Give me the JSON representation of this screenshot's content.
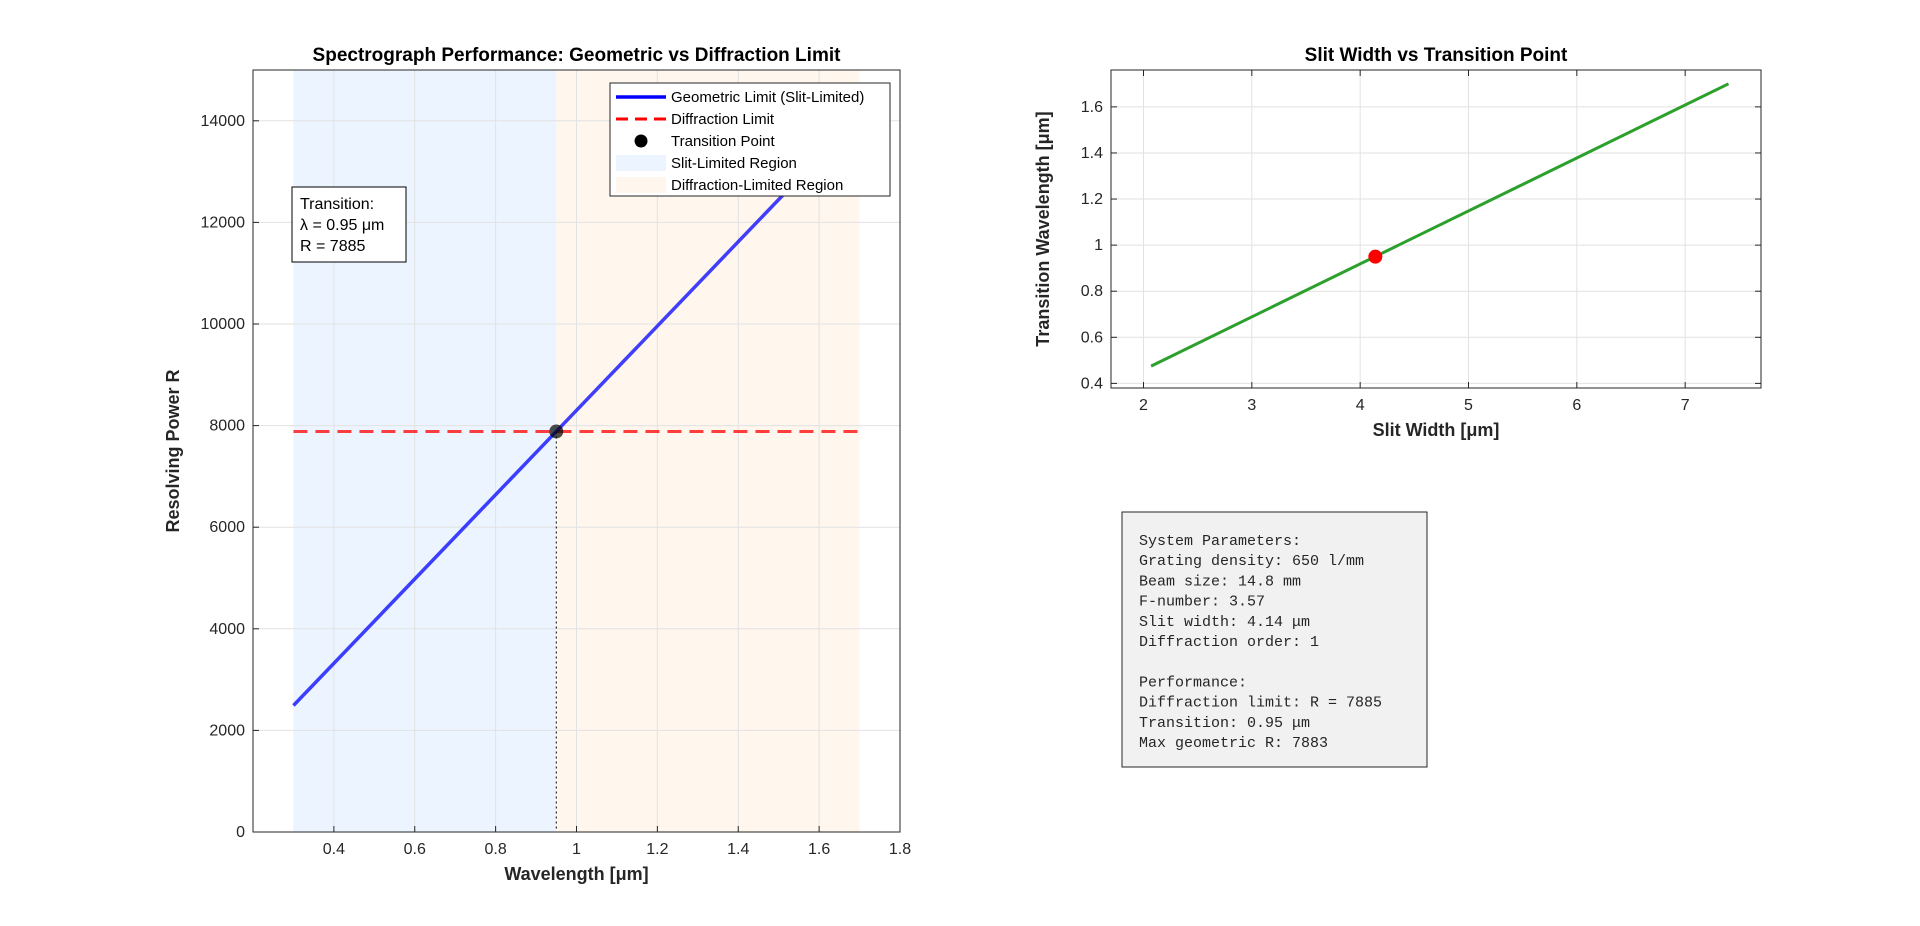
{
  "chart_data": [
    {
      "type": "line",
      "title": "Spectrograph Performance: Geometric vs Diffraction Limit",
      "xlabel": "Wavelength [μm]",
      "ylabel": "Resolving Power R",
      "xlim": [
        0.2,
        1.8
      ],
      "ylim": [
        0,
        15000
      ],
      "xticks": [
        0.4,
        0.6,
        0.8,
        1,
        1.2,
        1.4,
        1.6,
        1.8
      ],
      "yticks": [
        0,
        2000,
        4000,
        6000,
        8000,
        10000,
        12000,
        14000
      ],
      "grid": true,
      "legend_position": "top-right",
      "series": [
        {
          "name": "Geometric Limit (Slit-Limited)",
          "style": "solid",
          "color": "#0000ff",
          "x": [
            0.3,
            0.95,
            1.7
          ],
          "y": [
            2490,
            7885,
            14110
          ]
        },
        {
          "name": "Diffraction Limit",
          "style": "dashed",
          "color": "#ff0000",
          "x": [
            0.3,
            1.7
          ],
          "y": [
            7885,
            7885
          ]
        },
        {
          "name": "Transition Point",
          "style": "marker",
          "color": "#000000",
          "x": [
            0.95
          ],
          "y": [
            7885
          ]
        }
      ],
      "regions": [
        {
          "name": "Slit-Limited Region",
          "x": [
            0.3,
            0.95
          ],
          "color": "#cfe6ff"
        },
        {
          "name": "Diffraction-Limited Region",
          "x": [
            0.95,
            1.7
          ],
          "color": "#ffe8d4"
        }
      ],
      "annotation": {
        "lines": [
          "Transition:",
          "λ = 0.95 μm",
          "R = 7885"
        ],
        "position": "top-left"
      }
    },
    {
      "type": "line",
      "title": "Slit Width vs Transition Point",
      "xlabel": "Slit Width [μm]",
      "ylabel": "Transition Wavelength [μm]",
      "xlim": [
        1.7,
        7.7
      ],
      "ylim": [
        0.38,
        1.76
      ],
      "xticks": [
        2,
        3,
        4,
        5,
        6,
        7
      ],
      "yticks": [
        0.4,
        0.6,
        0.8,
        1,
        1.2,
        1.4,
        1.6
      ],
      "grid": true,
      "series": [
        {
          "style": "solid",
          "color": "#2ca02c",
          "x": [
            2.07,
            7.4
          ],
          "y": [
            0.475,
            1.7
          ]
        },
        {
          "style": "marker",
          "color": "#ff0000",
          "x": [
            4.14
          ],
          "y": [
            0.95
          ]
        }
      ]
    }
  ],
  "params_box": {
    "lines": [
      "System Parameters:",
      "Grating density: 650 l/mm",
      "Beam size: 14.8 mm",
      "F-number: 3.57",
      "Slit width: 4.14 μm",
      "Diffraction order: 1",
      "",
      "Performance:",
      "Diffraction limit: R = 7885",
      "Transition: 0.95 μm",
      "Max geometric R: 7883"
    ]
  }
}
